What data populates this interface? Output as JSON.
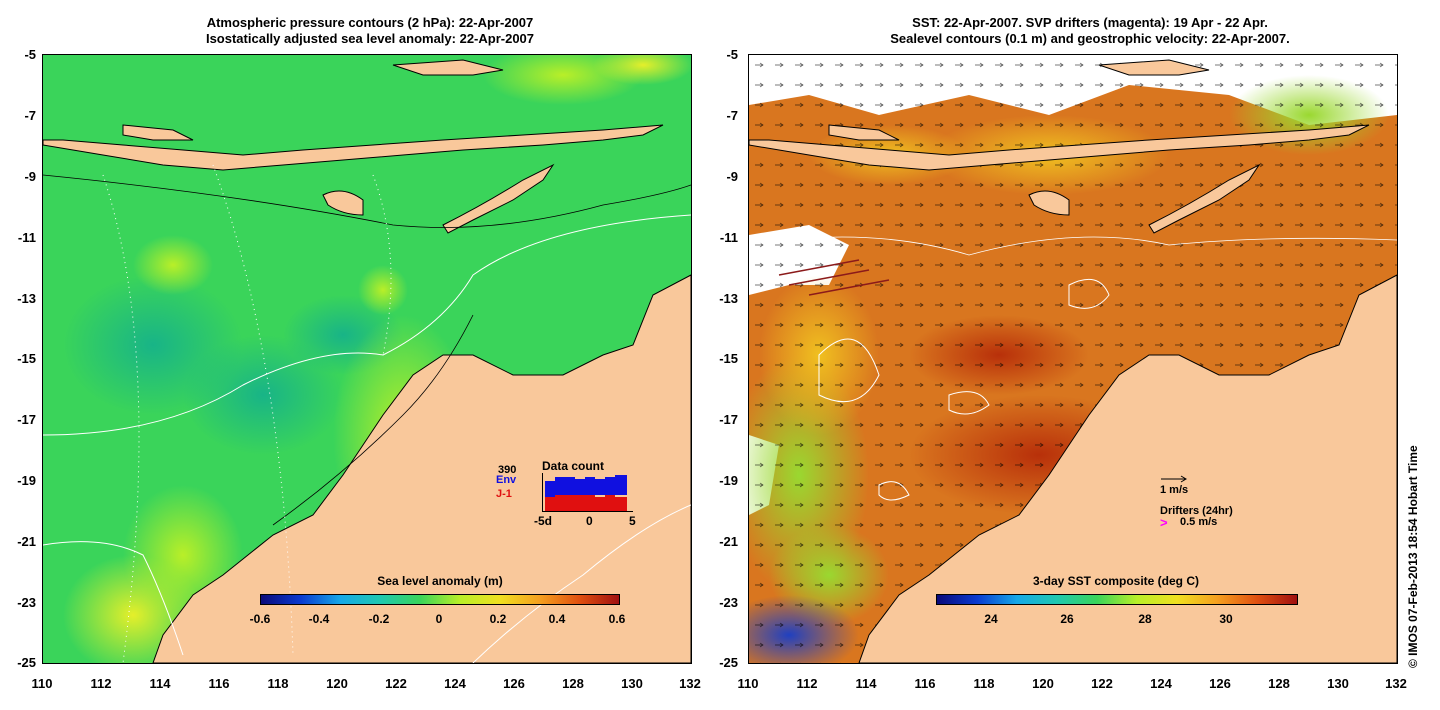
{
  "left": {
    "title_line1": "Atmospheric pressure contours (2 hPa): 22-Apr-2007",
    "title_line2": "Isostatically adjusted sea level anomaly: 22-Apr-2007",
    "colorbar_title": "Sea level anomaly (m)",
    "colorbar_ticks": [
      "-0.6",
      "-0.4",
      "-0.2",
      "0",
      "0.2",
      "0.4",
      "0.6"
    ],
    "data_count": {
      "title": "Data count",
      "max_label": "390",
      "env_label": "Env",
      "j1_label": "J-1",
      "axis_labels": [
        "-5d",
        "0",
        "5"
      ],
      "env_color": "#1010e0",
      "j1_color": "#e01010"
    }
  },
  "right": {
    "title_line1": "SST: 22-Apr-2007. SVP drifters (magenta): 19 Apr - 22 Apr.",
    "title_line2": "Sealevel contours (0.1 m) and geostrophic velocity: 22-Apr-2007.",
    "colorbar_title": "3-day SST composite (deg C)",
    "colorbar_ticks": [
      "24",
      "26",
      "28",
      "30"
    ],
    "scale_arrow_label": "1 m/s",
    "drifters_label": "Drifters (24hr)",
    "drifters_speed": "0.5 m/s",
    "drifter_color": "#ff00ff"
  },
  "y_ticks": [
    "-5",
    "-7",
    "-9",
    "-11",
    "-13",
    "-15",
    "-17",
    "-19",
    "-21",
    "-23",
    "-25"
  ],
  "x_ticks": [
    "110",
    "112",
    "114",
    "116",
    "118",
    "120",
    "122",
    "124",
    "126",
    "128",
    "130",
    "132"
  ],
  "credit": "© IMOS 07-Feb-2013 18:54 Hobart Time",
  "colors": {
    "land": "#f9c89b",
    "ocean_sla": "#33d65a",
    "sst_warm": "#d86a1e"
  }
}
